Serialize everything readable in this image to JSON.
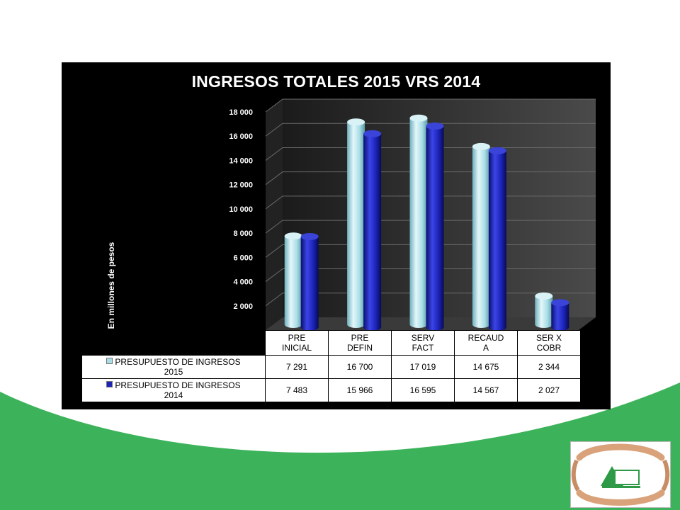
{
  "colors": {
    "green": "#3cb35a",
    "panel": "#000000",
    "series_2015": "#a9dde6",
    "series_2014": "#1c23b8"
  },
  "chart_data": {
    "type": "bar",
    "title": "INGRESOS TOTALES 2015 VRS 2014",
    "ylabel": "En millones de pesos",
    "xlabel": "",
    "ylim": [
      0,
      18000
    ],
    "yticks": [
      "-",
      "2 000",
      "4 000",
      "6 000",
      "8 000",
      "10 000",
      "12 000",
      "14 000",
      "16 000",
      "18 000"
    ],
    "categories": [
      [
        "PRE",
        "INICIAL"
      ],
      [
        "PRE",
        "DEFIN"
      ],
      [
        "SERV",
        "FACT"
      ],
      [
        "RECAUD",
        "A"
      ],
      [
        "SER X",
        "COBR"
      ]
    ],
    "series": [
      {
        "name": [
          "PRESUPUESTO DE INGRESOS",
          "2015"
        ],
        "values": [
          7291,
          16700,
          17019,
          14675,
          2344
        ],
        "labels": [
          "7 291",
          "16 700",
          "17 019",
          "14 675",
          "2 344"
        ]
      },
      {
        "name": [
          "PRESUPUESTO DE INGRESOS",
          "2014"
        ],
        "values": [
          7483,
          15966,
          16595,
          14567,
          2027
        ],
        "labels": [
          "7 483",
          "15 966",
          "16 595",
          "14 567",
          "2 027"
        ]
      }
    ],
    "grid": true,
    "legend": "data-table"
  },
  "logo": {
    "icon": "hands-house-logo-icon"
  }
}
